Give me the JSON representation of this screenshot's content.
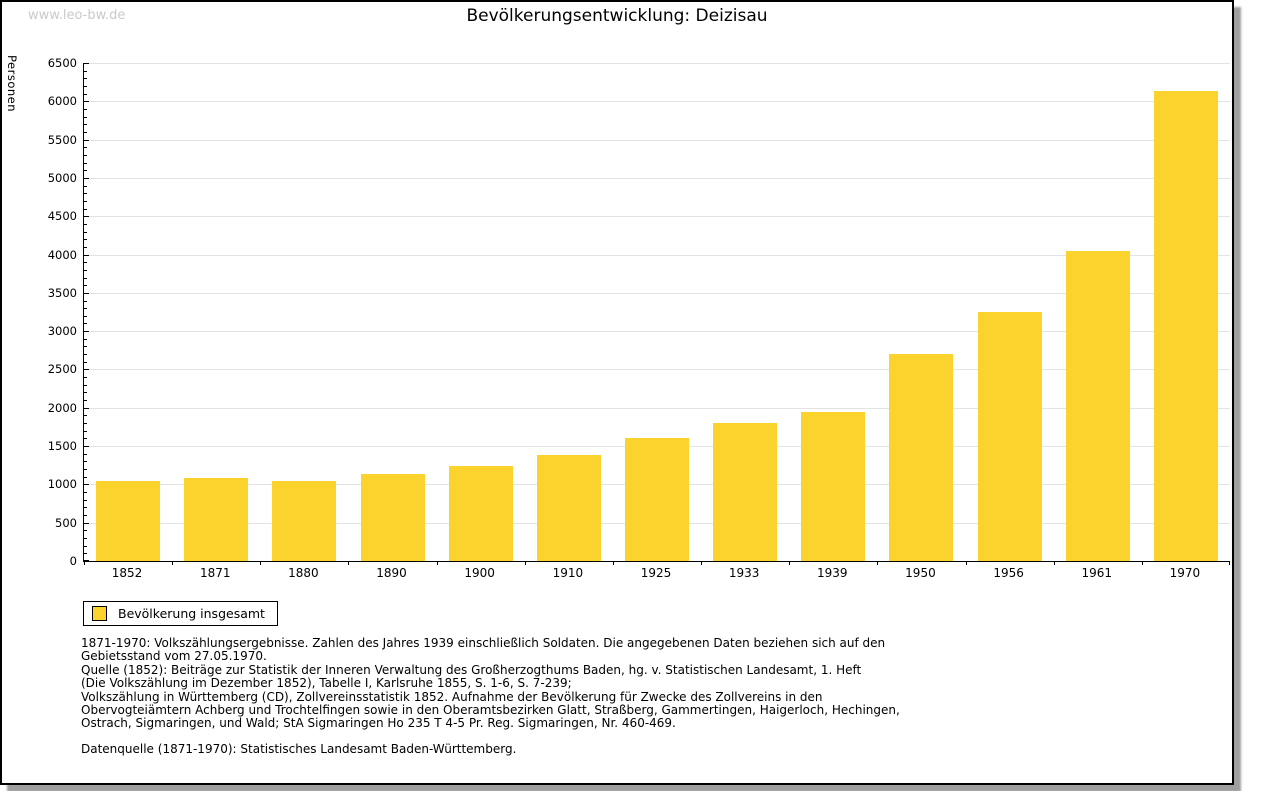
{
  "watermark": "www.leo-bw.de",
  "title": "Bevölkerungsentwicklung: Deizisau",
  "legend": {
    "label": "Bevölkerung insgesamt"
  },
  "colors": {
    "bar": "#fcd32d",
    "grid": "#e3e3e3",
    "axis": "#000000",
    "watermark": "#cacaca"
  },
  "chart_data": {
    "type": "bar",
    "title": "Bevölkerungsentwicklung: Deizisau",
    "ylabel": "Personen",
    "xlabel": "",
    "categories": [
      "1852",
      "1871",
      "1880",
      "1890",
      "1900",
      "1910",
      "1925",
      "1933",
      "1939",
      "1950",
      "1956",
      "1961",
      "1970"
    ],
    "values": [
      1050,
      1090,
      1040,
      1130,
      1240,
      1390,
      1610,
      1800,
      1940,
      2700,
      3250,
      4040,
      6140
    ],
    "series_name": "Bevölkerung insgesamt",
    "ylim": [
      0,
      6500
    ],
    "y_major_step": 500,
    "y_minor_step": 100,
    "grid": "horizontal-major",
    "legend_position": "bottom-left",
    "bar_color": "#fcd32d"
  },
  "footnotes": {
    "lines": [
      "1871-1970: Volkszählungsergebnisse. Zahlen des Jahres 1939 einschließlich Soldaten. Die angegebenen Daten beziehen sich auf den",
      "Gebietsstand vom 27.05.1970.",
      "Quelle (1852): Beiträge zur Statistik der Inneren Verwaltung des Großherzogthums Baden, hg. v. Statistischen Landesamt, 1. Heft",
      "(Die Volkszählung im Dezember 1852), Tabelle I, Karlsruhe 1855, S. 1-6, S. 7-239;",
      "Volkszählung in Württemberg (CD), Zollvereinsstatistik 1852. Aufnahme der Bevölkerung für Zwecke des Zollvereins in den",
      "Obervogteiämtern Achberg und Trochtelfingen sowie in den Oberamtsbezirken Glatt, Straßberg, Gammertingen, Haigerloch, Hechingen,",
      "Ostrach, Sigmaringen, und Wald; StA Sigmaringen Ho 235 T 4-5 Pr. Reg. Sigmaringen, Nr. 460-469."
    ],
    "datenquelle": "Datenquelle (1871-1970): Statistisches Landesamt Baden-Württemberg."
  }
}
